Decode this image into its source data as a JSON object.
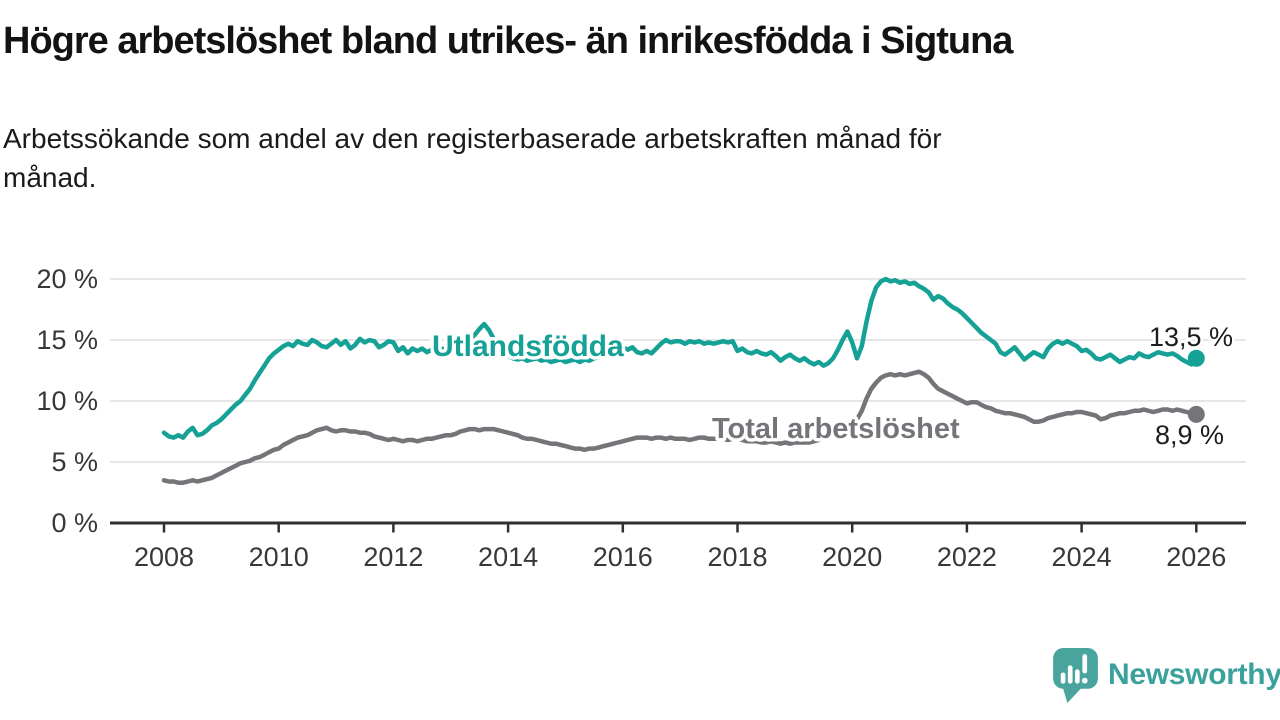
{
  "header": {
    "title": "Högre arbetslöshet bland utrikes- än inrikesfödda i Sigtuna",
    "subtitle": "Arbetssökande som andel av den registerbaserade arbetskraften månad för månad.",
    "subtitle_lines": [
      "Arbetssökande som andel av den registerbaserade arbetskraften månad för",
      "månad."
    ]
  },
  "chart_data": {
    "type": "line",
    "title": "Högre arbetslöshet bland utrikes- än inrikesfödda i Sigtuna",
    "ylabel": "Arbetssökande som andel av den registerbaserade arbetskraften",
    "xlabel": "",
    "xlim": [
      2008,
      2026
    ],
    "ylim": [
      0,
      20.5
    ],
    "grid": "horizontal-only",
    "legend_position": "inline-labels",
    "x_ticks": [
      {
        "value": 2008,
        "label": "2008"
      },
      {
        "value": 2010,
        "label": "2010"
      },
      {
        "value": 2012,
        "label": "2012"
      },
      {
        "value": 2014,
        "label": "2014"
      },
      {
        "value": 2016,
        "label": "2016"
      },
      {
        "value": 2018,
        "label": "2018"
      },
      {
        "value": 2020,
        "label": "2020"
      },
      {
        "value": 2022,
        "label": "2022"
      },
      {
        "value": 2024,
        "label": "2024"
      },
      {
        "value": 2026,
        "label": "2026"
      }
    ],
    "y_ticks": [
      {
        "value": 0,
        "label": "0 %"
      },
      {
        "value": 5,
        "label": "5 %"
      },
      {
        "value": 10,
        "label": "10 %"
      },
      {
        "value": 15,
        "label": "15 %"
      },
      {
        "value": 20,
        "label": "20 %"
      }
    ],
    "series": [
      {
        "id": "utlandsfodda",
        "name": "Utlandsfödda",
        "color": "#15a195",
        "end_label": "13,5 %",
        "end_value": 13.5,
        "start_year": 2008,
        "points_per_year": 12,
        "values": [
          7.4,
          7.1,
          7.0,
          7.2,
          7.0,
          7.5,
          7.8,
          7.2,
          7.3,
          7.6,
          8.0,
          8.2,
          8.5,
          8.9,
          9.3,
          9.7,
          10.0,
          10.5,
          11.0,
          11.7,
          12.3,
          12.9,
          13.5,
          13.9,
          14.2,
          14.5,
          14.7,
          14.5,
          14.9,
          14.7,
          14.6,
          15.0,
          14.8,
          14.5,
          14.4,
          14.7,
          15.0,
          14.6,
          14.9,
          14.3,
          14.6,
          15.1,
          14.8,
          15.0,
          14.9,
          14.4,
          14.6,
          14.9,
          14.8,
          14.1,
          14.4,
          13.9,
          14.3,
          14.1,
          14.3,
          14.0,
          14.2,
          14.1,
          14.3,
          14.2,
          14.4,
          14.3,
          14.6,
          14.8,
          15.1,
          15.4,
          15.9,
          16.3,
          15.8,
          15.1,
          14.5,
          14.0,
          13.7,
          13.5,
          13.4,
          13.5,
          13.3,
          13.4,
          13.5,
          13.3,
          13.4,
          13.2,
          13.3,
          13.4,
          13.2,
          13.3,
          13.4,
          13.2,
          13.4,
          13.3,
          13.5,
          13.6,
          13.8,
          13.9,
          14.4,
          14.7,
          14.4,
          14.2,
          14.4,
          14.0,
          13.9,
          14.1,
          13.9,
          14.3,
          14.7,
          15.0,
          14.8,
          14.9,
          14.9,
          14.7,
          14.9,
          14.8,
          14.9,
          14.7,
          14.8,
          14.7,
          14.8,
          14.9,
          14.8,
          14.9,
          14.1,
          14.3,
          14.0,
          13.9,
          14.1,
          13.9,
          13.8,
          14.0,
          13.7,
          13.3,
          13.6,
          13.8,
          13.5,
          13.3,
          13.5,
          13.2,
          13.0,
          13.2,
          12.9,
          13.1,
          13.5,
          14.2,
          15.0,
          15.7,
          14.8,
          13.5,
          14.5,
          16.5,
          18.2,
          19.3,
          19.8,
          20.0,
          19.8,
          19.9,
          19.7,
          19.8,
          19.6,
          19.7,
          19.4,
          19.2,
          18.9,
          18.3,
          18.6,
          18.4,
          18.0,
          17.7,
          17.5,
          17.2,
          16.8,
          16.4,
          16.0,
          15.6,
          15.3,
          15.0,
          14.7,
          14.0,
          13.8,
          14.1,
          14.4,
          13.9,
          13.4,
          13.7,
          14.0,
          13.8,
          13.6,
          14.3,
          14.7,
          14.9,
          14.7,
          14.9,
          14.7,
          14.5,
          14.1,
          14.2,
          13.9,
          13.5,
          13.4,
          13.6,
          13.8,
          13.5,
          13.2,
          13.4,
          13.6,
          13.5,
          13.9,
          13.7,
          13.6,
          13.8,
          14.0,
          13.9,
          13.8,
          13.9,
          13.7,
          13.4,
          13.2,
          13.0,
          13.5
        ]
      },
      {
        "id": "total",
        "name": "Total arbetslöshet",
        "color": "#757479",
        "end_label": "8,9 %",
        "end_value": 8.9,
        "start_year": 2008,
        "points_per_year": 12,
        "values": [
          3.5,
          3.4,
          3.4,
          3.3,
          3.3,
          3.4,
          3.5,
          3.4,
          3.5,
          3.6,
          3.7,
          3.9,
          4.1,
          4.3,
          4.5,
          4.7,
          4.9,
          5.0,
          5.1,
          5.3,
          5.4,
          5.6,
          5.8,
          6.0,
          6.1,
          6.4,
          6.6,
          6.8,
          7.0,
          7.1,
          7.2,
          7.4,
          7.6,
          7.7,
          7.8,
          7.6,
          7.5,
          7.6,
          7.6,
          7.5,
          7.5,
          7.4,
          7.4,
          7.3,
          7.1,
          7.0,
          6.9,
          6.8,
          6.9,
          6.8,
          6.7,
          6.8,
          6.8,
          6.7,
          6.8,
          6.9,
          6.9,
          7.0,
          7.1,
          7.2,
          7.2,
          7.3,
          7.5,
          7.6,
          7.7,
          7.7,
          7.6,
          7.7,
          7.7,
          7.7,
          7.6,
          7.5,
          7.4,
          7.3,
          7.2,
          7.0,
          6.9,
          6.9,
          6.8,
          6.7,
          6.6,
          6.5,
          6.5,
          6.4,
          6.3,
          6.2,
          6.1,
          6.1,
          6.0,
          6.1,
          6.1,
          6.2,
          6.3,
          6.4,
          6.5,
          6.6,
          6.7,
          6.8,
          6.9,
          7.0,
          7.0,
          7.0,
          6.9,
          7.0,
          7.0,
          6.9,
          7.0,
          6.9,
          6.9,
          6.9,
          6.8,
          6.9,
          7.0,
          7.0,
          6.9,
          6.9,
          6.9,
          6.9,
          6.8,
          6.9,
          6.9,
          6.8,
          6.7,
          6.7,
          6.7,
          6.6,
          6.6,
          6.7,
          6.6,
          6.5,
          6.6,
          6.5,
          6.6,
          6.6,
          6.6,
          6.6,
          6.7,
          6.8,
          7.0,
          7.2,
          7.4,
          7.6,
          7.7,
          7.8,
          8.0,
          8.5,
          9.2,
          10.2,
          11.0,
          11.5,
          11.9,
          12.1,
          12.2,
          12.1,
          12.2,
          12.1,
          12.2,
          12.3,
          12.4,
          12.2,
          11.9,
          11.4,
          11.0,
          10.8,
          10.6,
          10.4,
          10.2,
          10.0,
          9.8,
          9.9,
          9.9,
          9.7,
          9.5,
          9.4,
          9.2,
          9.1,
          9.0,
          9.0,
          8.9,
          8.8,
          8.7,
          8.5,
          8.3,
          8.3,
          8.4,
          8.6,
          8.7,
          8.8,
          8.9,
          9.0,
          9.0,
          9.1,
          9.1,
          9.0,
          8.9,
          8.8,
          8.5,
          8.6,
          8.8,
          8.9,
          9.0,
          9.0,
          9.1,
          9.2,
          9.2,
          9.3,
          9.2,
          9.1,
          9.2,
          9.3,
          9.3,
          9.2,
          9.3,
          9.2,
          9.1,
          9.0,
          8.9
        ]
      }
    ]
  },
  "colors": {
    "accent_teal": "#15a195",
    "neutral_gray": "#757479",
    "logo_teal": "#4aa49e",
    "axis_text": "#383838",
    "title_text": "#131313"
  },
  "footer": {
    "brand": "Newsworthy"
  }
}
